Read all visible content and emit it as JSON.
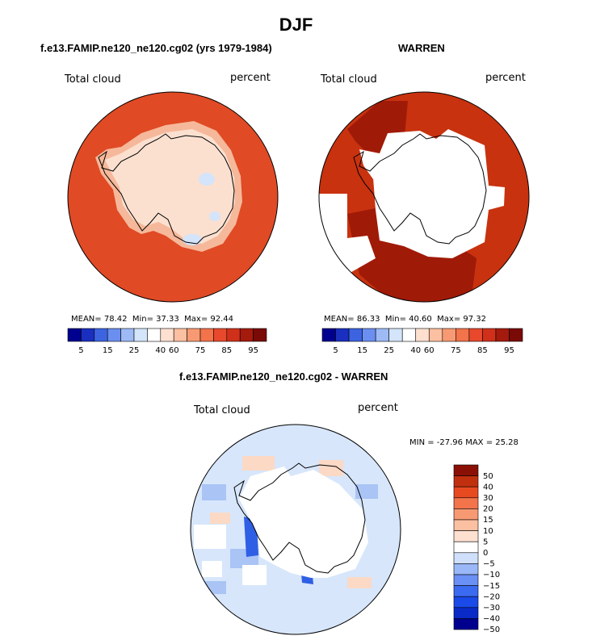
{
  "figure": {
    "title": "DJF"
  },
  "panels": [
    {
      "title": "f.e13.FAMIP.ne120_ne120.cg02 (yrs 1979-1984)",
      "variable": "Total cloud",
      "units": "percent",
      "stats": {
        "mean_label": "MEAN=",
        "mean": "78.42",
        "min_label": "Min=",
        "min": "37.33",
        "max_label": "Max=",
        "max": "92.44"
      }
    },
    {
      "title": "WARREN",
      "variable": "Total cloud",
      "units": "percent",
      "stats": {
        "mean_label": "MEAN=",
        "mean": "86.33",
        "min_label": "Min=",
        "min": "40.60",
        "max_label": "Max=",
        "max": "97.32"
      }
    },
    {
      "title": "f.e13.FAMIP.ne120_ne120.cg02 - WARREN",
      "variable": "Total cloud",
      "units": "percent",
      "stats_text": "MIN = -27.96 MAX =  25.28"
    }
  ],
  "colorbar_abs": {
    "colors": [
      "#00008f",
      "#1a2fbf",
      "#3c64e0",
      "#6b8ff0",
      "#9dbaf5",
      "#d4e4fa",
      "#ffffff",
      "#fde0d0",
      "#fbbfa1",
      "#f79a73",
      "#f3734b",
      "#e8492c",
      "#d0301a",
      "#a41a0d",
      "#7a0a05"
    ],
    "labels": [
      "5",
      "15",
      "25",
      "40",
      "60",
      "75",
      "85",
      "95"
    ]
  },
  "colorbar_diff": {
    "colors": [
      "#00008f",
      "#0a2ac8",
      "#1a4ae8",
      "#3a6af0",
      "#6a90f5",
      "#9ab8f8",
      "#d0e0fb",
      "#ffffff",
      "#fde0d0",
      "#fbbfa1",
      "#f79a73",
      "#f3734b",
      "#e84a20",
      "#c0300f",
      "#8a1005"
    ],
    "labels": [
      "50",
      "40",
      "30",
      "20",
      "15",
      "10",
      "5",
      "0",
      "−5",
      "−10",
      "−15",
      "−20",
      "−30",
      "−40",
      "−50"
    ]
  },
  "map_colors": {
    "ocean_high": "#e04a25",
    "ocean_warren_high": "#c8320f",
    "warren_max": "#a01a08",
    "coast_light": "#f6b89a",
    "interior_light": "#fbe0d0",
    "interior_blue": "#d4e4fa",
    "diff_base": "#d7e6fb",
    "diff_pos": "#fbd9c5",
    "diff_neg": "#a9c4f5",
    "diff_strong_neg": "#2f5fe5",
    "missing": "#ffffff"
  }
}
